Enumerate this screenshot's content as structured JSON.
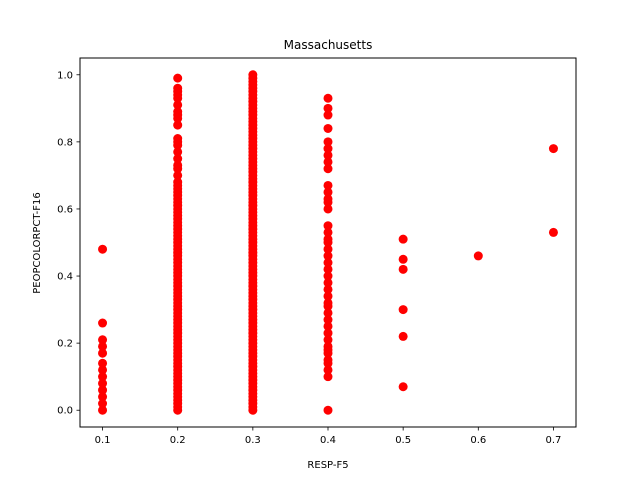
{
  "chart_data": {
    "type": "scatter",
    "title": "Massachusetts",
    "xlabel": "RESP-F5",
    "ylabel": "PEOPCOLORPCT-F16",
    "xlim": [
      0.07,
      0.73
    ],
    "ylim": [
      -0.05,
      1.05
    ],
    "xticks": [
      "0.1",
      "0.2",
      "0.3",
      "0.4",
      "0.5",
      "0.6",
      "0.7"
    ],
    "yticks": [
      "0.0",
      "0.2",
      "0.4",
      "0.6",
      "0.8",
      "1.0"
    ],
    "marker_color": "#ff0000",
    "grid": false,
    "series": [
      {
        "points": [
          [
            0.1,
            0.0
          ],
          [
            0.1,
            0.02
          ],
          [
            0.1,
            0.04
          ],
          [
            0.1,
            0.06
          ],
          [
            0.1,
            0.08
          ],
          [
            0.1,
            0.1
          ],
          [
            0.1,
            0.12
          ],
          [
            0.1,
            0.14
          ],
          [
            0.1,
            0.17
          ],
          [
            0.1,
            0.19
          ],
          [
            0.1,
            0.21
          ],
          [
            0.1,
            0.26
          ],
          [
            0.1,
            0.48
          ],
          [
            0.2,
            0.0
          ],
          [
            0.2,
            0.01
          ],
          [
            0.2,
            0.02
          ],
          [
            0.2,
            0.03
          ],
          [
            0.2,
            0.04
          ],
          [
            0.2,
            0.05
          ],
          [
            0.2,
            0.06
          ],
          [
            0.2,
            0.07
          ],
          [
            0.2,
            0.08
          ],
          [
            0.2,
            0.09
          ],
          [
            0.2,
            0.1
          ],
          [
            0.2,
            0.11
          ],
          [
            0.2,
            0.12
          ],
          [
            0.2,
            0.13
          ],
          [
            0.2,
            0.14
          ],
          [
            0.2,
            0.15
          ],
          [
            0.2,
            0.16
          ],
          [
            0.2,
            0.17
          ],
          [
            0.2,
            0.18
          ],
          [
            0.2,
            0.19
          ],
          [
            0.2,
            0.2
          ],
          [
            0.2,
            0.21
          ],
          [
            0.2,
            0.22
          ],
          [
            0.2,
            0.23
          ],
          [
            0.2,
            0.24
          ],
          [
            0.2,
            0.25
          ],
          [
            0.2,
            0.26
          ],
          [
            0.2,
            0.27
          ],
          [
            0.2,
            0.28
          ],
          [
            0.2,
            0.29
          ],
          [
            0.2,
            0.3
          ],
          [
            0.2,
            0.31
          ],
          [
            0.2,
            0.32
          ],
          [
            0.2,
            0.33
          ],
          [
            0.2,
            0.34
          ],
          [
            0.2,
            0.35
          ],
          [
            0.2,
            0.36
          ],
          [
            0.2,
            0.37
          ],
          [
            0.2,
            0.38
          ],
          [
            0.2,
            0.39
          ],
          [
            0.2,
            0.4
          ],
          [
            0.2,
            0.41
          ],
          [
            0.2,
            0.42
          ],
          [
            0.2,
            0.43
          ],
          [
            0.2,
            0.44
          ],
          [
            0.2,
            0.45
          ],
          [
            0.2,
            0.46
          ],
          [
            0.2,
            0.47
          ],
          [
            0.2,
            0.48
          ],
          [
            0.2,
            0.49
          ],
          [
            0.2,
            0.5
          ],
          [
            0.2,
            0.51
          ],
          [
            0.2,
            0.52
          ],
          [
            0.2,
            0.53
          ],
          [
            0.2,
            0.54
          ],
          [
            0.2,
            0.55
          ],
          [
            0.2,
            0.56
          ],
          [
            0.2,
            0.57
          ],
          [
            0.2,
            0.58
          ],
          [
            0.2,
            0.59
          ],
          [
            0.2,
            0.6
          ],
          [
            0.2,
            0.61
          ],
          [
            0.2,
            0.62
          ],
          [
            0.2,
            0.63
          ],
          [
            0.2,
            0.64
          ],
          [
            0.2,
            0.65
          ],
          [
            0.2,
            0.66
          ],
          [
            0.2,
            0.67
          ],
          [
            0.2,
            0.68
          ],
          [
            0.2,
            0.7
          ],
          [
            0.2,
            0.72
          ],
          [
            0.2,
            0.73
          ],
          [
            0.2,
            0.75
          ],
          [
            0.2,
            0.77
          ],
          [
            0.2,
            0.79
          ],
          [
            0.2,
            0.8
          ],
          [
            0.2,
            0.81
          ],
          [
            0.2,
            0.85
          ],
          [
            0.2,
            0.87
          ],
          [
            0.2,
            0.88
          ],
          [
            0.2,
            0.89
          ],
          [
            0.2,
            0.91
          ],
          [
            0.2,
            0.93
          ],
          [
            0.2,
            0.94
          ],
          [
            0.2,
            0.95
          ],
          [
            0.2,
            0.96
          ],
          [
            0.2,
            0.99
          ],
          [
            0.3,
            0.0
          ],
          [
            0.3,
            0.01
          ],
          [
            0.3,
            0.02
          ],
          [
            0.3,
            0.03
          ],
          [
            0.3,
            0.04
          ],
          [
            0.3,
            0.05
          ],
          [
            0.3,
            0.06
          ],
          [
            0.3,
            0.07
          ],
          [
            0.3,
            0.08
          ],
          [
            0.3,
            0.09
          ],
          [
            0.3,
            0.1
          ],
          [
            0.3,
            0.11
          ],
          [
            0.3,
            0.12
          ],
          [
            0.3,
            0.13
          ],
          [
            0.3,
            0.14
          ],
          [
            0.3,
            0.15
          ],
          [
            0.3,
            0.16
          ],
          [
            0.3,
            0.17
          ],
          [
            0.3,
            0.18
          ],
          [
            0.3,
            0.19
          ],
          [
            0.3,
            0.2
          ],
          [
            0.3,
            0.21
          ],
          [
            0.3,
            0.22
          ],
          [
            0.3,
            0.23
          ],
          [
            0.3,
            0.24
          ],
          [
            0.3,
            0.25
          ],
          [
            0.3,
            0.26
          ],
          [
            0.3,
            0.27
          ],
          [
            0.3,
            0.28
          ],
          [
            0.3,
            0.29
          ],
          [
            0.3,
            0.3
          ],
          [
            0.3,
            0.31
          ],
          [
            0.3,
            0.32
          ],
          [
            0.3,
            0.33
          ],
          [
            0.3,
            0.34
          ],
          [
            0.3,
            0.35
          ],
          [
            0.3,
            0.36
          ],
          [
            0.3,
            0.37
          ],
          [
            0.3,
            0.38
          ],
          [
            0.3,
            0.39
          ],
          [
            0.3,
            0.4
          ],
          [
            0.3,
            0.41
          ],
          [
            0.3,
            0.42
          ],
          [
            0.3,
            0.43
          ],
          [
            0.3,
            0.44
          ],
          [
            0.3,
            0.45
          ],
          [
            0.3,
            0.46
          ],
          [
            0.3,
            0.47
          ],
          [
            0.3,
            0.48
          ],
          [
            0.3,
            0.49
          ],
          [
            0.3,
            0.5
          ],
          [
            0.3,
            0.51
          ],
          [
            0.3,
            0.52
          ],
          [
            0.3,
            0.53
          ],
          [
            0.3,
            0.54
          ],
          [
            0.3,
            0.55
          ],
          [
            0.3,
            0.56
          ],
          [
            0.3,
            0.57
          ],
          [
            0.3,
            0.58
          ],
          [
            0.3,
            0.59
          ],
          [
            0.3,
            0.6
          ],
          [
            0.3,
            0.61
          ],
          [
            0.3,
            0.62
          ],
          [
            0.3,
            0.63
          ],
          [
            0.3,
            0.64
          ],
          [
            0.3,
            0.65
          ],
          [
            0.3,
            0.66
          ],
          [
            0.3,
            0.67
          ],
          [
            0.3,
            0.68
          ],
          [
            0.3,
            0.69
          ],
          [
            0.3,
            0.7
          ],
          [
            0.3,
            0.71
          ],
          [
            0.3,
            0.72
          ],
          [
            0.3,
            0.73
          ],
          [
            0.3,
            0.74
          ],
          [
            0.3,
            0.75
          ],
          [
            0.3,
            0.76
          ],
          [
            0.3,
            0.77
          ],
          [
            0.3,
            0.78
          ],
          [
            0.3,
            0.79
          ],
          [
            0.3,
            0.8
          ],
          [
            0.3,
            0.81
          ],
          [
            0.3,
            0.82
          ],
          [
            0.3,
            0.83
          ],
          [
            0.3,
            0.84
          ],
          [
            0.3,
            0.85
          ],
          [
            0.3,
            0.86
          ],
          [
            0.3,
            0.87
          ],
          [
            0.3,
            0.88
          ],
          [
            0.3,
            0.89
          ],
          [
            0.3,
            0.9
          ],
          [
            0.3,
            0.91
          ],
          [
            0.3,
            0.92
          ],
          [
            0.3,
            0.93
          ],
          [
            0.3,
            0.94
          ],
          [
            0.3,
            0.95
          ],
          [
            0.3,
            0.96
          ],
          [
            0.3,
            0.97
          ],
          [
            0.3,
            0.98
          ],
          [
            0.3,
            0.99
          ],
          [
            0.3,
            1.0
          ],
          [
            0.4,
            0.0
          ],
          [
            0.4,
            0.1
          ],
          [
            0.4,
            0.12
          ],
          [
            0.4,
            0.14
          ],
          [
            0.4,
            0.15
          ],
          [
            0.4,
            0.17
          ],
          [
            0.4,
            0.18
          ],
          [
            0.4,
            0.19
          ],
          [
            0.4,
            0.21
          ],
          [
            0.4,
            0.23
          ],
          [
            0.4,
            0.25
          ],
          [
            0.4,
            0.27
          ],
          [
            0.4,
            0.29
          ],
          [
            0.4,
            0.31
          ],
          [
            0.4,
            0.32
          ],
          [
            0.4,
            0.34
          ],
          [
            0.4,
            0.36
          ],
          [
            0.4,
            0.38
          ],
          [
            0.4,
            0.4
          ],
          [
            0.4,
            0.42
          ],
          [
            0.4,
            0.44
          ],
          [
            0.4,
            0.46
          ],
          [
            0.4,
            0.48
          ],
          [
            0.4,
            0.5
          ],
          [
            0.4,
            0.51
          ],
          [
            0.4,
            0.53
          ],
          [
            0.4,
            0.55
          ],
          [
            0.4,
            0.6
          ],
          [
            0.4,
            0.62
          ],
          [
            0.4,
            0.63
          ],
          [
            0.4,
            0.65
          ],
          [
            0.4,
            0.67
          ],
          [
            0.4,
            0.72
          ],
          [
            0.4,
            0.74
          ],
          [
            0.4,
            0.76
          ],
          [
            0.4,
            0.78
          ],
          [
            0.4,
            0.8
          ],
          [
            0.4,
            0.84
          ],
          [
            0.4,
            0.88
          ],
          [
            0.4,
            0.9
          ],
          [
            0.4,
            0.93
          ],
          [
            0.5,
            0.07
          ],
          [
            0.5,
            0.22
          ],
          [
            0.5,
            0.3
          ],
          [
            0.5,
            0.42
          ],
          [
            0.5,
            0.45
          ],
          [
            0.5,
            0.51
          ],
          [
            0.6,
            0.46
          ],
          [
            0.7,
            0.53
          ],
          [
            0.7,
            0.78
          ]
        ]
      }
    ]
  }
}
